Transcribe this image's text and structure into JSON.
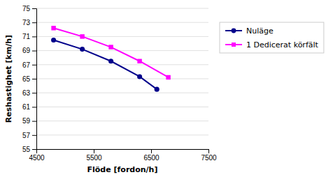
{
  "chart_data": {
    "type": "line",
    "xlabel": "Flöde [fordon/h]",
    "ylabel": "Reshastighet [km/h]",
    "series": [
      {
        "name": "Nuläge",
        "color": "#00008B",
        "marker": "circle",
        "x": [
          4800,
          5300,
          5800,
          6300,
          6600
        ],
        "values": [
          70.5,
          69.2,
          67.5,
          65.3,
          63.5
        ]
      },
      {
        "name": "1 Dedicerat körfält",
        "color": "#FF00FF",
        "marker": "square",
        "x": [
          4800,
          5300,
          5800,
          6300,
          6800
        ],
        "values": [
          72.2,
          71.0,
          69.5,
          67.5,
          65.2
        ]
      }
    ],
    "xlim": [
      4500,
      7500
    ],
    "ylim": [
      55,
      75
    ],
    "xticks": [
      4500,
      5500,
      6500,
      7500
    ],
    "yticks": [
      55,
      57,
      59,
      61,
      63,
      65,
      67,
      69,
      71,
      73,
      75
    ],
    "grid": "y",
    "legend": "right"
  }
}
